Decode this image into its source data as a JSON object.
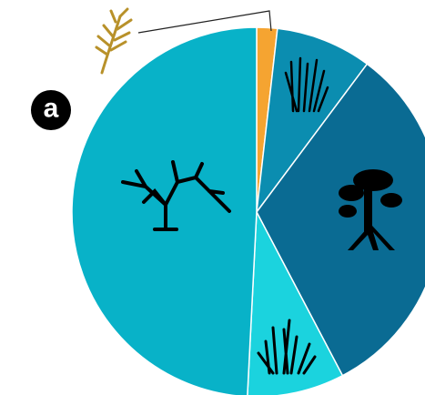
{
  "chart_data": {
    "type": "pie",
    "panel_label": "a",
    "values": [
      1.8,
      8.4,
      32.1,
      8.5,
      49.2
    ],
    "colors": [
      "#f5a431",
      "#0b8db0",
      "#0a6b93",
      "#1bd3de",
      "#08b2c8"
    ]
  }
}
